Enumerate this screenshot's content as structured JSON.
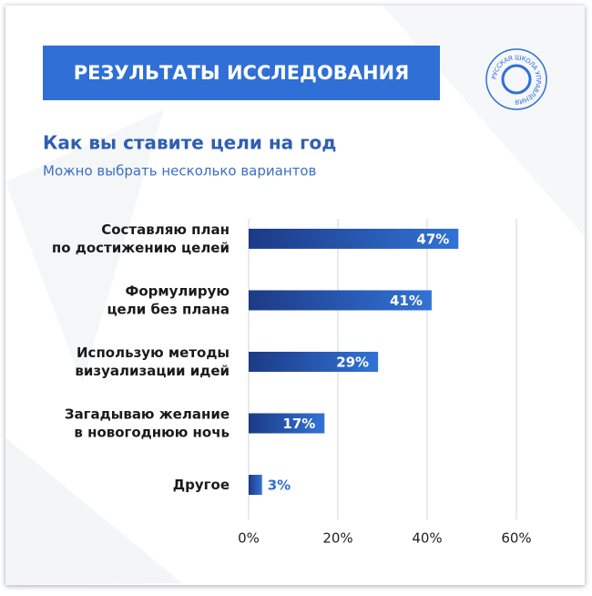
{
  "header": {
    "title": "РЕЗУЛЬТАТЫ ИССЛЕДОВАНИЯ",
    "logo_text": "РУССКАЯ ШКОЛА УПРАВЛЕНИЯ"
  },
  "chart_data": {
    "type": "bar",
    "orientation": "horizontal",
    "title": "Как вы ставите цели на год",
    "subtitle": "Можно выбрать несколько вариантов",
    "categories": [
      "Составляю план\nпо достижению целей",
      "Формулирую\nцели без плана",
      "Использую методы\nвизуализации идей",
      "Загадываю желание\nв новогоднюю ночь",
      "Другое"
    ],
    "values": [
      47,
      41,
      29,
      17,
      3
    ],
    "value_labels": [
      "47%",
      "41%",
      "29%",
      "17%",
      "3%"
    ],
    "color": "#2b5fbe",
    "xlim": [
      0,
      60
    ],
    "xticks": [
      {
        "value": 0,
        "label": "0%"
      },
      {
        "value": 20,
        "label": "20%"
      },
      {
        "value": 40,
        "label": "40%"
      },
      {
        "value": 60,
        "label": "60%"
      }
    ],
    "grid": true
  }
}
